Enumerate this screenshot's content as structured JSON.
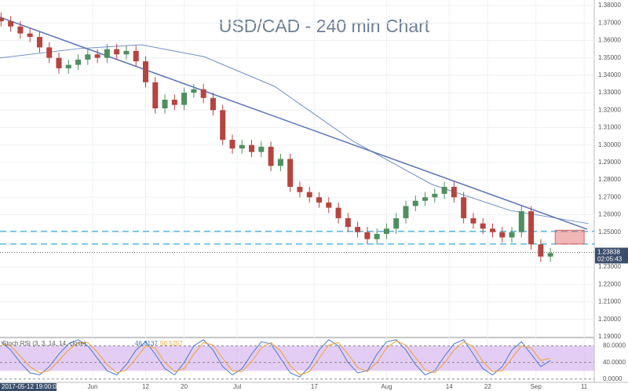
{
  "chart_data": {
    "type": "candlestick",
    "title": "USD/CAD - 240 min Chart",
    "x": [
      1,
      3,
      5,
      7,
      9,
      11,
      13,
      15,
      17,
      19,
      21,
      23,
      25,
      27,
      29,
      31,
      33,
      35,
      37,
      39,
      41,
      43,
      45,
      47,
      49,
      51,
      53,
      55,
      57,
      59,
      61,
      63,
      65,
      67,
      69,
      71,
      73,
      75,
      77,
      79,
      81,
      83,
      85,
      87,
      89,
      91,
      93,
      95,
      97,
      99,
      101,
      103,
      105,
      107,
      109,
      111,
      113,
      115
    ],
    "open": [
      1.373,
      1.371,
      1.368,
      1.364,
      1.362,
      1.356,
      1.35,
      1.344,
      1.346,
      1.349,
      1.352,
      1.35,
      1.355,
      1.352,
      1.354,
      1.348,
      1.336,
      1.321,
      1.326,
      1.323,
      1.33,
      1.332,
      1.327,
      1.32,
      1.303,
      1.298,
      1.3,
      1.296,
      1.299,
      1.288,
      1.292,
      1.276,
      1.273,
      1.27,
      1.267,
      1.264,
      1.258,
      1.253,
      1.25,
      1.246,
      1.249,
      1.252,
      1.258,
      1.265,
      1.268,
      1.27,
      1.272,
      1.276,
      1.27,
      1.258,
      1.255,
      1.252,
      1.25,
      1.247,
      1.25,
      1.262,
      1.243,
      1.236
    ],
    "high": [
      1.376,
      1.374,
      1.371,
      1.367,
      1.365,
      1.359,
      1.353,
      1.349,
      1.352,
      1.355,
      1.355,
      1.358,
      1.358,
      1.357,
      1.357,
      1.351,
      1.339,
      1.329,
      1.329,
      1.333,
      1.335,
      1.335,
      1.33,
      1.323,
      1.306,
      1.303,
      1.303,
      1.302,
      1.302,
      1.295,
      1.295,
      1.279,
      1.276,
      1.273,
      1.27,
      1.267,
      1.261,
      1.256,
      1.253,
      1.252,
      1.255,
      1.261,
      1.268,
      1.271,
      1.273,
      1.275,
      1.279,
      1.279,
      1.273,
      1.261,
      1.258,
      1.255,
      1.253,
      1.253,
      1.265,
      1.265,
      1.246,
      1.241
    ],
    "low": [
      1.368,
      1.365,
      1.361,
      1.359,
      1.353,
      1.347,
      1.341,
      1.341,
      1.343,
      1.346,
      1.347,
      1.347,
      1.349,
      1.349,
      1.345,
      1.333,
      1.318,
      1.318,
      1.32,
      1.32,
      1.327,
      1.324,
      1.317,
      1.3,
      1.295,
      1.295,
      1.293,
      1.293,
      1.285,
      1.285,
      1.273,
      1.27,
      1.267,
      1.264,
      1.261,
      1.255,
      1.25,
      1.247,
      1.243,
      1.243,
      1.246,
      1.249,
      1.255,
      1.262,
      1.265,
      1.267,
      1.269,
      1.267,
      1.255,
      1.252,
      1.249,
      1.247,
      1.244,
      1.244,
      1.247,
      1.24,
      1.233,
      1.233
    ],
    "close": [
      1.371,
      1.368,
      1.364,
      1.362,
      1.356,
      1.35,
      1.344,
      1.346,
      1.349,
      1.352,
      1.35,
      1.355,
      1.352,
      1.354,
      1.348,
      1.336,
      1.321,
      1.326,
      1.323,
      1.33,
      1.332,
      1.327,
      1.32,
      1.303,
      1.298,
      1.3,
      1.296,
      1.299,
      1.288,
      1.292,
      1.276,
      1.273,
      1.27,
      1.267,
      1.264,
      1.258,
      1.253,
      1.25,
      1.246,
      1.249,
      1.252,
      1.258,
      1.265,
      1.268,
      1.27,
      1.272,
      1.276,
      1.27,
      1.258,
      1.255,
      1.252,
      1.25,
      1.247,
      1.25,
      1.262,
      1.243,
      1.236,
      1.238
    ],
    "up_color": "#4f8f5f",
    "down_color": "#b5443f",
    "moving_average": {
      "color": "#6f8fc8",
      "x": [
        0.8,
        17.1,
        30.1,
        43.1,
        57.8,
        74.1,
        90.4,
        106.6,
        122.9
      ],
      "values": [
        1.35,
        1.3553,
        1.3575,
        1.3507,
        1.3336,
        1.3021,
        1.2774,
        1.2625,
        1.2549
      ]
    },
    "trendline": {
      "color": "#5a73b8",
      "x": [
        0.78,
        122.6
      ],
      "values": [
        1.3733,
        1.2517
      ]
    },
    "levels": {
      "color": "#5ab8e0",
      "values": [
        1.2505,
        1.2432
      ]
    },
    "zone": {
      "color": "#e06060",
      "x": [
        116,
        122
      ],
      "values": [
        1.2511,
        1.2432
      ]
    },
    "xlim": [
      0.78,
      124.1
    ],
    "ylim": [
      1.1895,
      1.3832
    ],
    "yticks": [
      {
        "value": 1.38,
        "label": "1.38000"
      },
      {
        "value": 1.37,
        "label": "1.37000"
      },
      {
        "value": 1.36,
        "label": "1.36000"
      },
      {
        "value": 1.35,
        "label": "1.35000"
      },
      {
        "value": 1.34,
        "label": "1.34000"
      },
      {
        "value": 1.33,
        "label": "1.33000"
      },
      {
        "value": 1.32,
        "label": "1.32000"
      },
      {
        "value": 1.31,
        "label": "1.31000"
      },
      {
        "value": 1.3,
        "label": "1.30000"
      },
      {
        "value": 1.29,
        "label": "1.29000"
      },
      {
        "value": 1.28,
        "label": "1.28000"
      },
      {
        "value": 1.27,
        "label": "1.27000"
      },
      {
        "value": 1.26,
        "label": "1.26000"
      },
      {
        "value": 1.25,
        "label": "1.25000"
      },
      {
        "value": 1.23,
        "label": "1.23000"
      },
      {
        "value": 1.22,
        "label": "1.22000"
      },
      {
        "value": 1.21,
        "label": "1.21000"
      },
      {
        "value": 1.2,
        "label": "1.20000"
      },
      {
        "value": 1.19,
        "label": "1.19000"
      }
    ],
    "xticks": [
      {
        "value": 20,
        "label": "Jun"
      },
      {
        "value": 31,
        "label": "12"
      },
      {
        "value": 39,
        "label": "20"
      },
      {
        "value": 50,
        "label": "Jul"
      },
      {
        "value": 66,
        "label": "17"
      },
      {
        "value": 81,
        "label": "Aug"
      },
      {
        "value": 94,
        "label": "14"
      },
      {
        "value": 102,
        "label": "22"
      },
      {
        "value": 112,
        "label": "Sep"
      },
      {
        "value": 122,
        "label": "11"
      }
    ],
    "start_label": "2017-05-12 19:00:00",
    "last_price": {
      "value": 1.23838,
      "label": "1.23838"
    },
    "countdown": "02:05:43",
    "grid": true,
    "stoch": {
      "title": "Stoch RSI (3, 3, 14, 14, close)",
      "ylim": [
        -8,
        100
      ],
      "yticks": [
        {
          "value": 80,
          "label": "80.0000"
        },
        {
          "value": 40,
          "label": "40.0000"
        },
        {
          "value": 0,
          "label": "0.0000"
        }
      ],
      "band": [
        20,
        80
      ],
      "band_color": "#d9b8f0",
      "series": [
        {
          "color": "#4a7bd0",
          "readout": 46.3137,
          "values": [
            90,
            70,
            40,
            15,
            10,
            30,
            60,
            85,
            95,
            80,
            50,
            20,
            10,
            35,
            70,
            90,
            60,
            25,
            10,
            40,
            80,
            95,
            70,
            30,
            10,
            25,
            60,
            90,
            85,
            50,
            15,
            5,
            30,
            70,
            95,
            80,
            40,
            15,
            20,
            60,
            90,
            95,
            70,
            35,
            10,
            20,
            55,
            85,
            95,
            60,
            25,
            10,
            30,
            70,
            90,
            60,
            30,
            45
          ]
        },
        {
          "color": "#f0a030",
          "readout": 50.5257,
          "values": [
            85,
            80,
            55,
            30,
            15,
            20,
            45,
            70,
            88,
            88,
            65,
            35,
            15,
            22,
            50,
            80,
            75,
            40,
            18,
            25,
            60,
            88,
            82,
            50,
            20,
            18,
            42,
            75,
            88,
            68,
            32,
            10,
            18,
            50,
            82,
            88,
            60,
            28,
            18,
            40,
            75,
            92,
            82,
            52,
            22,
            15,
            38,
            70,
            90,
            78,
            42,
            18,
            20,
            50,
            80,
            75,
            45,
            50
          ]
        }
      ]
    }
  }
}
